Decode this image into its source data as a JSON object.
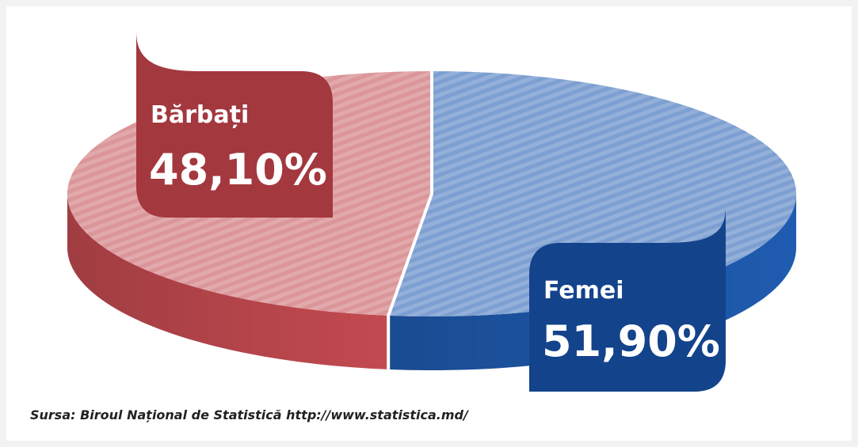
{
  "chart_data": {
    "type": "pie",
    "categories": [
      "Bărbați",
      "Femei"
    ],
    "values": [
      48.1,
      51.9
    ],
    "value_labels": [
      "48,10%",
      "51,90%"
    ],
    "colors": [
      "#c24a50",
      "#1f5bb0"
    ],
    "source": "Sursa: Biroul Național de Statistică http://www.statistica.md/"
  }
}
